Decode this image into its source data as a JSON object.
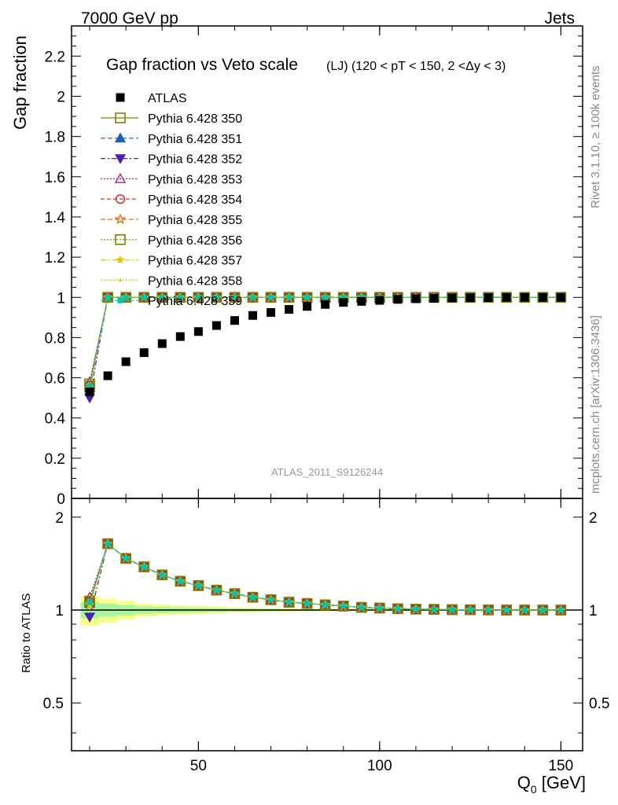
{
  "header": {
    "energy_label": "7000 GeV pp",
    "process_label": "Jets"
  },
  "side_labels": {
    "rivet": "Rivet 3.1.10, ≥ 100k events",
    "mcplots": "mcplots.cern.ch [arXiv:1306.3436]"
  },
  "chart_data": {
    "type": "scatter",
    "title_main": "Gap fraction vs Veto scale",
    "title_sub": "(LJ) (120 < pT < 150, 2 <Δy < 3)",
    "analysis_id": "ATLAS_2011_S9126244",
    "ylabel_main": "Gap fraction",
    "ylabel_ratio": "Ratio to ATLAS",
    "xlabel": "Q",
    "xlabel_sub": "0",
    "xlabel_unit": " [GeV]",
    "xlim": [
      15,
      156
    ],
    "ylim_main": [
      0,
      2.35
    ],
    "ylim_ratio": [
      0.35,
      2.3
    ],
    "x_ticks": [
      50,
      100,
      150
    ],
    "y_ticks_main": [
      0,
      0.2,
      0.4,
      0.6,
      0.8,
      1,
      1.2,
      1.4,
      1.6,
      1.8,
      2,
      2.2
    ],
    "y_tick_labels_main": [
      "0",
      "0.2",
      "0.4",
      "0.6",
      "0.8",
      "1",
      "1.2",
      "1.4",
      "1.6",
      "1.8",
      "2",
      "2.2"
    ],
    "y_ticks_ratio": [
      0.5,
      1,
      2
    ],
    "y_tick_labels_ratio": [
      "0.5",
      "1",
      "2"
    ],
    "x": [
      20,
      25,
      30,
      35,
      40,
      45,
      50,
      55,
      60,
      65,
      70,
      75,
      80,
      85,
      90,
      95,
      100,
      105,
      110,
      115,
      120,
      125,
      130,
      135,
      140,
      145,
      150
    ],
    "atlas": {
      "name": "ATLAS",
      "color": "#000000",
      "values": [
        0.53,
        0.61,
        0.68,
        0.725,
        0.77,
        0.805,
        0.83,
        0.86,
        0.885,
        0.91,
        0.925,
        0.94,
        0.955,
        0.965,
        0.975,
        0.98,
        0.985,
        0.99,
        0.993,
        0.995,
        0.997,
        0.998,
        0.999,
        1.0,
        1.0,
        1.0,
        1.0
      ]
    },
    "mc_values": [
      0.56,
      1.0,
      1.0,
      1.0,
      1.0,
      1.0,
      1.0,
      1.0,
      1.0,
      1.0,
      1.0,
      1.0,
      1.0,
      1.0,
      1.0,
      1.0,
      1.0,
      1.0,
      1.0,
      1.0,
      1.0,
      1.0,
      1.0,
      1.0,
      1.0,
      1.0,
      1.0
    ],
    "mc_first_values": [
      0.56,
      0.55,
      0.5,
      0.58,
      0.56,
      0.55,
      0.57,
      0.55,
      0.54,
      0.56
    ],
    "ratio_values": [
      1.05,
      1.64,
      1.47,
      1.38,
      1.3,
      1.24,
      1.2,
      1.16,
      1.13,
      1.1,
      1.08,
      1.06,
      1.05,
      1.04,
      1.03,
      1.02,
      1.015,
      1.01,
      1.007,
      1.005,
      1.003,
      1.002,
      1.001,
      1.0,
      1.0,
      1.0,
      1.0
    ],
    "ratio_first_values": [
      1.06,
      1.05,
      0.95,
      1.1,
      1.06,
      1.04,
      1.07,
      1.04,
      1.02,
      1.06
    ],
    "series": [
      {
        "name": "Pythia 6.428 350",
        "color": "#808000",
        "marker": "open-square",
        "dash": ""
      },
      {
        "name": "Pythia 6.428 351",
        "color": "#1f5fb4",
        "marker": "triangle-up",
        "dash": "6,3"
      },
      {
        "name": "Pythia 6.428 352",
        "color": "#4b1fa6",
        "marker": "triangle-down",
        "dash": "6,3,2,3"
      },
      {
        "name": "Pythia 6.428 353",
        "color": "#b0208a",
        "marker": "open-triangle",
        "dash": "2,2"
      },
      {
        "name": "Pythia 6.428 354",
        "color": "#d81e1e",
        "marker": "open-circle",
        "dash": "5,3"
      },
      {
        "name": "Pythia 6.428 355",
        "color": "#ee6a10",
        "marker": "open-star",
        "dash": "6,3"
      },
      {
        "name": "Pythia 6.428 356",
        "color": "#6e8a00",
        "marker": "open-square",
        "dash": "2,2"
      },
      {
        "name": "Pythia 6.428 357",
        "color": "#d8c800",
        "marker": "star-small",
        "dash": "7,3,2,3"
      },
      {
        "name": "Pythia 6.428 358",
        "color": "#b8d800",
        "marker": "dot",
        "dash": "2,2"
      },
      {
        "name": "Pythia 6.428 359",
        "color": "#00c8a0",
        "marker": "filled-square-small",
        "dash": "6,3"
      }
    ]
  }
}
